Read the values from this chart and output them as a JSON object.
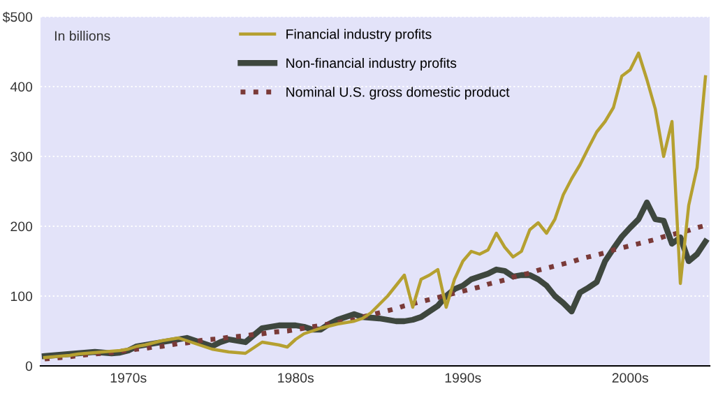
{
  "chart_data": {
    "type": "line",
    "categories": [
      null,
      null,
      null,
      null,
      null,
      null,
      null,
      null,
      null,
      null,
      "1970s",
      null,
      null,
      null,
      null,
      null,
      null,
      null,
      null,
      null,
      null,
      null,
      null,
      null,
      null,
      null,
      null,
      null,
      null,
      null,
      "1980s",
      null,
      null,
      null,
      null,
      null,
      null,
      null,
      null,
      null,
      null,
      null,
      null,
      null,
      null,
      null,
      null,
      null,
      null,
      null,
      "1990s",
      null,
      null,
      null,
      null,
      null,
      null,
      null,
      null,
      null,
      null,
      null,
      null,
      null,
      null,
      null,
      null,
      null,
      null,
      null,
      "2000s",
      null,
      null,
      null,
      null,
      null,
      null,
      null,
      null,
      null
    ],
    "ylim": [
      0,
      500
    ],
    "yticks": [
      0,
      100,
      200,
      300,
      400,
      {
        "value": 500,
        "label": "$500"
      }
    ],
    "grid": "y",
    "legend": "top",
    "annotations": [
      "In billions"
    ],
    "series": [
      {
        "name": "Financial industry profits",
        "color": "#b5a030",
        "line_style": "solid",
        "values": [
          12,
          13,
          14,
          15,
          17,
          18,
          19,
          20,
          21,
          22,
          24,
          28,
          30,
          33,
          36,
          38,
          40,
          36,
          32,
          28,
          24,
          22,
          20,
          19,
          18,
          26,
          34,
          32,
          30,
          27,
          38,
          46,
          50,
          54,
          57,
          60,
          62,
          64,
          68,
          76,
          88,
          100,
          115,
          130,
          84,
          124,
          130,
          138,
          84,
          124,
          150,
          164,
          160,
          166,
          190,
          170,
          156,
          164,
          195,
          205,
          190,
          210,
          245,
          268,
          288,
          312,
          335,
          350,
          370,
          415,
          424,
          448,
          410,
          368,
          300,
          350,
          118,
          230,
          284,
          414
        ]
      },
      {
        "name": "Non-financial industry profits",
        "color": "#3e473e",
        "line_style": "solid",
        "values": [
          14,
          15,
          16,
          17,
          18,
          19,
          20,
          19,
          18,
          19,
          22,
          28,
          30,
          32,
          34,
          36,
          38,
          40,
          36,
          32,
          28,
          34,
          38,
          36,
          34,
          44,
          54,
          56,
          58,
          58,
          58,
          56,
          52,
          52,
          60,
          66,
          70,
          74,
          70,
          69,
          68,
          66,
          64,
          64,
          66,
          70,
          78,
          86,
          100,
          110,
          115,
          124,
          128,
          132,
          138,
          136,
          128,
          130,
          130,
          124,
          115,
          100,
          90,
          78,
          105,
          112,
          120,
          150,
          168,
          185,
          198,
          210,
          234,
          210,
          208,
          175,
          184,
          150,
          160,
          178
        ]
      },
      {
        "name": "Nominal U.S. gross domestic product",
        "color": "#7a3a38",
        "line_style": "dotted",
        "values": [
          10,
          11,
          12,
          13,
          15,
          16,
          17,
          18,
          19,
          21,
          22,
          24,
          25,
          27,
          28,
          30,
          32,
          33,
          35,
          37,
          38,
          39,
          41,
          42,
          43,
          45,
          46,
          48,
          49,
          50,
          52,
          54,
          56,
          58,
          60,
          62,
          64,
          66,
          70,
          73,
          76,
          79,
          82,
          86,
          89,
          92,
          95,
          98,
          101,
          104,
          107,
          110,
          113,
          117,
          120,
          123,
          127,
          130,
          133,
          137,
          140,
          143,
          146,
          149,
          153,
          156,
          159,
          162,
          166,
          169,
          172,
          175,
          178,
          181,
          185,
          188,
          191,
          194,
          198,
          201
        ]
      }
    ]
  }
}
